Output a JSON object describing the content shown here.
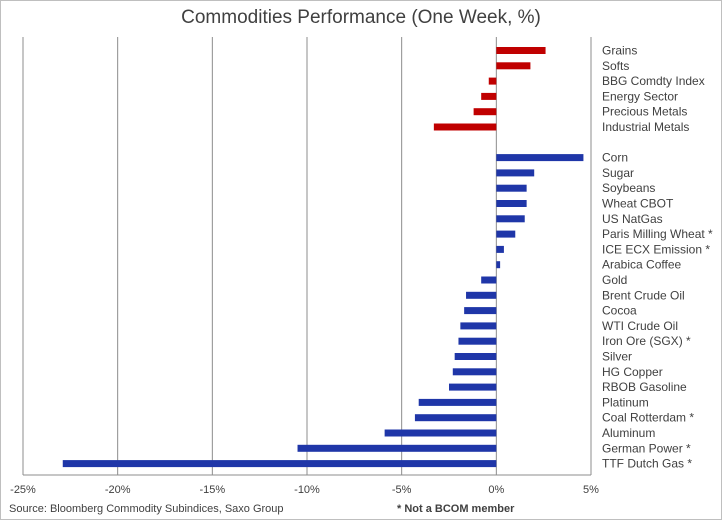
{
  "chart_data": {
    "type": "bar",
    "orientation": "horizontal",
    "title": "Commodities Performance (One Week, %)",
    "xlabel": "",
    "ylabel": "",
    "xlim": [
      -25,
      5
    ],
    "x_ticks": [
      "-25%",
      "-20%",
      "-15%",
      "-10%",
      "-5%",
      "0%",
      "5%"
    ],
    "grid": "vertical",
    "colors": {
      "indices": "#c00000",
      "commodities": "#1f36a8",
      "grid": "#8c8c8c"
    },
    "groups": [
      {
        "color": "#c00000",
        "categories": [
          "Grains",
          "Softs",
          "BBG Comdty Index",
          "Energy Sector",
          "Precious Metals",
          "Industrial Metals"
        ],
        "values": [
          2.6,
          1.8,
          -0.4,
          -0.8,
          -1.2,
          -3.3
        ]
      },
      {
        "color": "#1f36a8",
        "categories": [
          "Corn",
          "Sugar",
          "Soybeans",
          "Wheat CBOT",
          "US NatGas",
          "Paris Milling Wheat *",
          "ICE ECX Emission *",
          "Arabica Coffee",
          "Gold",
          "Brent Crude Oil",
          "Cocoa",
          "WTI Crude Oil",
          "Iron Ore (SGX) *",
          "Silver",
          "HG Copper",
          "RBOB Gasoline",
          "Platinum",
          "Coal Rotterdam *",
          "Aluminum",
          "German Power *",
          "TTF Dutch Gas *"
        ],
        "values": [
          4.6,
          2.0,
          1.6,
          1.6,
          1.5,
          1.0,
          0.4,
          0.2,
          -0.8,
          -1.6,
          -1.7,
          -1.9,
          -2.0,
          -2.2,
          -2.3,
          -2.5,
          -4.1,
          -4.3,
          -5.9,
          -10.5,
          -22.9
        ]
      }
    ]
  },
  "footer": {
    "source": "Source: Bloomberg Commodity Subindices, Saxo Group",
    "note": "* Not a BCOM member"
  }
}
